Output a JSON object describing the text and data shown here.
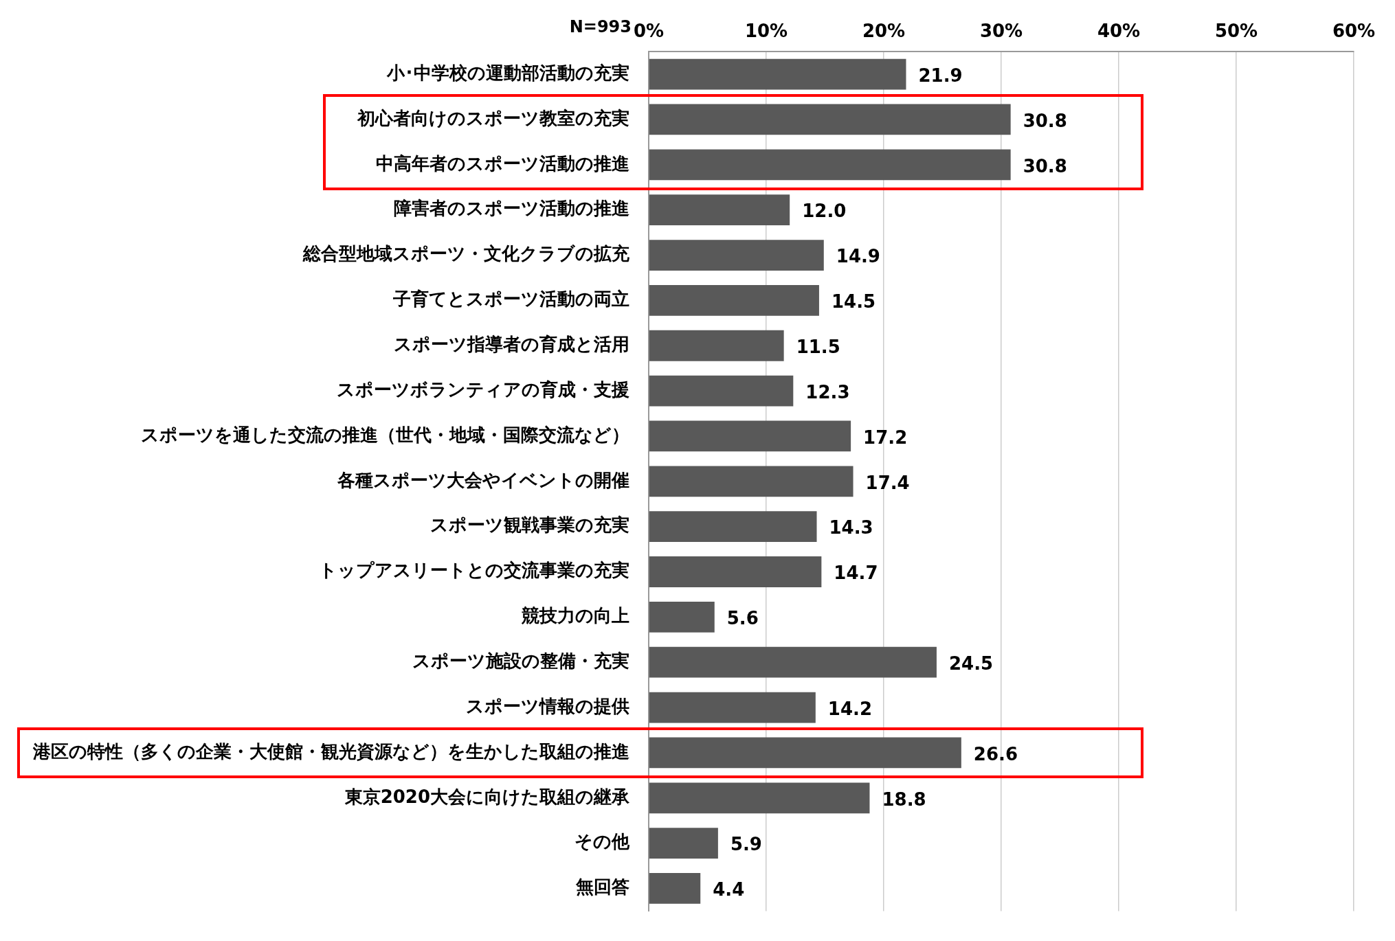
{
  "chart_data": {
    "type": "bar",
    "orientation": "horizontal",
    "categories": [
      "小･中学校の運動部活動の充実",
      "初心者向けのスポーツ教室の充実",
      "中高年者のスポーツ活動の推進",
      "障害者のスポーツ活動の推進",
      "総合型地域スポーツ・文化クラブの拡充",
      "子育てとスポーツ活動の両立",
      "スポーツ指導者の育成と活用",
      "スポーツボランティアの育成・支援",
      "スポーツを通した交流の推進（世代・地域・国際交流など）",
      "各種スポーツ大会やイベントの開催",
      "スポーツ観戦事業の充実",
      "トップアスリートとの交流事業の充実",
      "競技力の向上",
      "スポーツ施設の整備・充実",
      "スポーツ情報の提供",
      "港区の特性（多くの企業・大使館・観光資源など）を生かした取組の推進",
      "東京2020大会に向けた取組の継承",
      "その他",
      "無回答"
    ],
    "values": [
      21.9,
      30.8,
      30.8,
      12.0,
      14.9,
      14.5,
      11.5,
      12.3,
      17.2,
      17.4,
      14.3,
      14.7,
      5.6,
      24.5,
      14.2,
      26.6,
      18.8,
      5.9,
      4.4
    ],
    "value_labels": [
      "21.9",
      "30.8",
      "30.8",
      "12.0",
      "14.9",
      "14.5",
      "11.5",
      "12.3",
      "17.2",
      "17.4",
      "14.3",
      "14.7",
      "5.6",
      "24.5",
      "14.2",
      "26.6",
      "18.8",
      "5.9",
      "4.4"
    ],
    "color": "#595959",
    "xlim": [
      0,
      60
    ],
    "xticks": [
      {
        "value": 0,
        "label": "0%"
      },
      {
        "value": 10,
        "label": "10%"
      },
      {
        "value": 20,
        "label": "20%"
      },
      {
        "value": 30,
        "label": "30%"
      },
      {
        "value": 40,
        "label": "40%"
      },
      {
        "value": 50,
        "label": "50%"
      },
      {
        "value": 60,
        "label": "60%"
      }
    ],
    "grid": "x",
    "legend": false,
    "annotations": [
      "N=993"
    ]
  }
}
